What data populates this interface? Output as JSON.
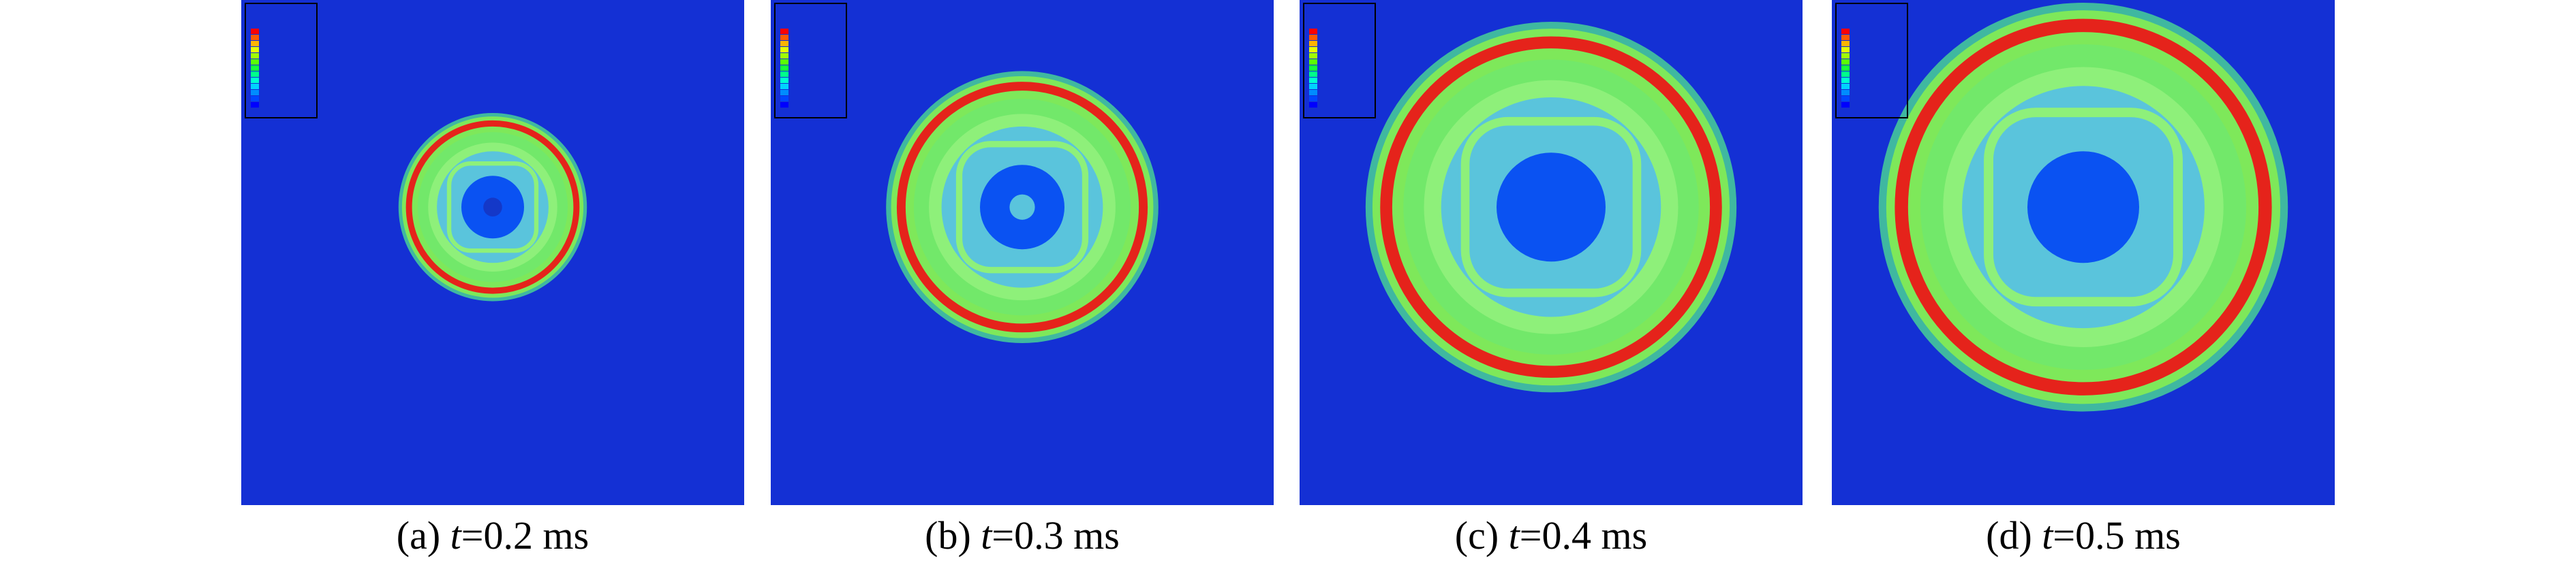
{
  "panels": [
    {
      "label": "(a)",
      "variable": "t",
      "value": "=0.2 ms"
    },
    {
      "label": "(b)",
      "variable": "t",
      "value": "=0.3 ms"
    },
    {
      "label": "(c)",
      "variable": "t",
      "value": "=0.4 ms"
    },
    {
      "label": "(d)",
      "variable": "t",
      "value": "=0.5 ms"
    }
  ]
}
